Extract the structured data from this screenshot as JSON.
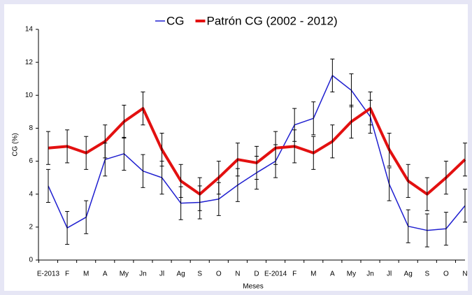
{
  "chart_data": {
    "type": "line",
    "x_label": "Meses",
    "y_label": "CG (%)",
    "categories": [
      "E-2013",
      "F",
      "M",
      "A",
      "My",
      "Jn",
      "Jl",
      "Ag",
      "S",
      "O",
      "N",
      "D",
      "E-2014",
      "F",
      "M",
      "A",
      "My",
      "Jn",
      "Jl",
      "Ag",
      "S",
      "O",
      "N"
    ],
    "series": [
      {
        "name": "CG",
        "color": "#1f1fd0",
        "width": 1.5,
        "values": [
          4.5,
          1.95,
          2.6,
          6.1,
          6.45,
          5.4,
          5.0,
          3.45,
          3.5,
          3.7,
          4.55,
          5.3,
          6.0,
          8.2,
          8.6,
          11.2,
          10.3,
          8.7,
          4.6,
          2.05,
          1.8,
          1.9,
          3.3
        ],
        "errors": [
          1,
          1,
          1,
          1,
          1,
          1,
          1,
          1,
          1,
          1,
          1,
          1,
          1,
          1,
          1,
          1,
          1,
          1,
          1,
          1,
          1,
          1,
          1
        ]
      },
      {
        "name": "Patrón CG (2002 - 2012)",
        "color": "#e31010",
        "width": 4,
        "values": [
          6.8,
          6.9,
          6.5,
          7.2,
          8.4,
          9.2,
          6.7,
          4.8,
          4.0,
          5.0,
          6.1,
          5.9,
          6.8,
          6.9,
          6.5,
          7.2,
          8.4,
          9.2,
          6.7,
          4.8,
          4.0,
          5.0,
          6.1
        ],
        "errors": [
          1,
          1,
          1,
          1,
          1,
          1,
          1,
          1,
          1,
          1,
          1,
          1,
          1,
          1,
          1,
          1,
          1,
          1,
          1,
          1,
          1,
          1,
          1
        ]
      }
    ],
    "ylim": [
      0,
      14
    ],
    "yticks": [
      0,
      2,
      4,
      6,
      8,
      10,
      12,
      14
    ]
  }
}
